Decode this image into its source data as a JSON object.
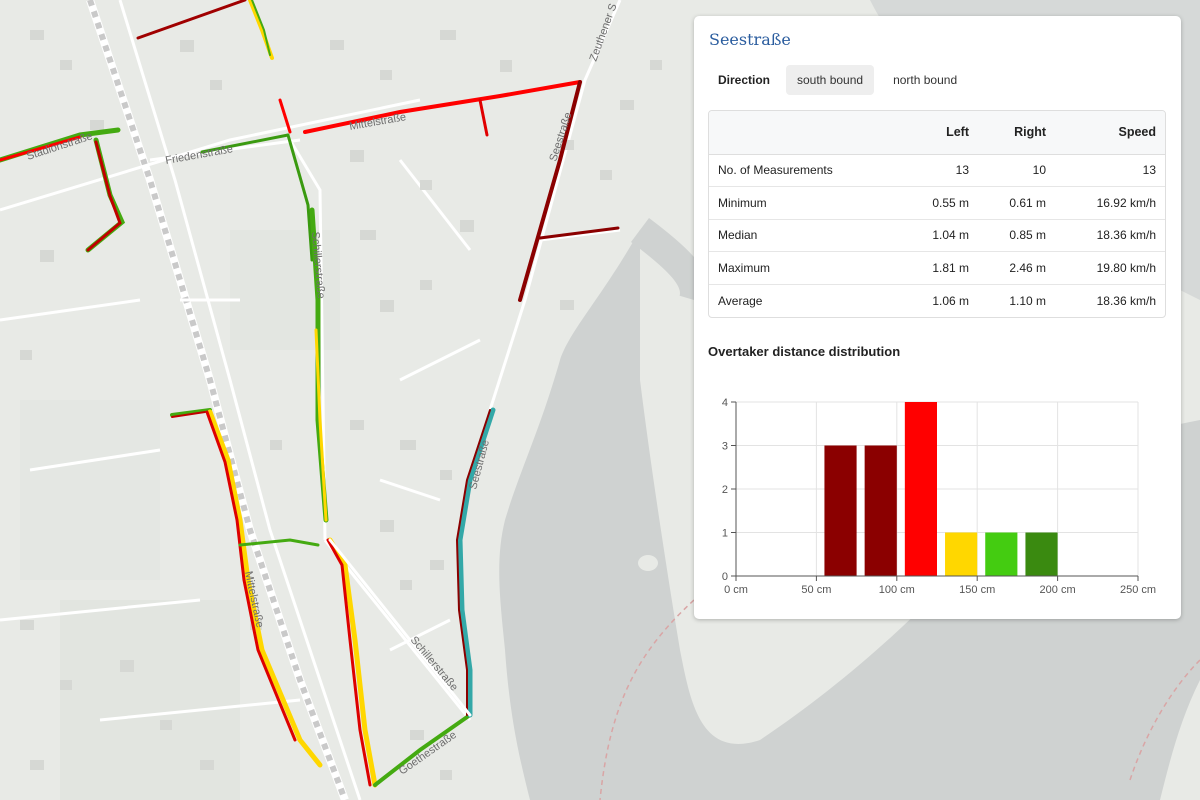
{
  "map": {
    "street_labels": [
      "Stadionstraße",
      "Friedenstraße",
      "Mittelstraße",
      "Seestraße",
      "Zeuthener S",
      "Schillerstraße",
      "Schillerstraße",
      "Goethestraße",
      "Seestraße",
      "Mittelstraße"
    ]
  },
  "panel": {
    "title": "Seestraße",
    "direction_label": "Direction",
    "buttons": [
      {
        "label": "south bound",
        "active": true
      },
      {
        "label": "north bound",
        "active": false
      }
    ]
  },
  "stats": {
    "headers": [
      "",
      "Left",
      "Right",
      "Speed"
    ],
    "rows": [
      {
        "name": "No. of Measurements",
        "left": "13",
        "right": "10",
        "speed": "13"
      },
      {
        "name": "Minimum",
        "left": "0.55 m",
        "right": "0.61 m",
        "speed": "16.92 km/h"
      },
      {
        "name": "Median",
        "left": "1.04 m",
        "right": "0.85 m",
        "speed": "18.36 km/h"
      },
      {
        "name": "Maximum",
        "left": "1.81 m",
        "right": "2.46 m",
        "speed": "19.80 km/h"
      },
      {
        "name": "Average",
        "left": "1.06 m",
        "right": "1.10 m",
        "speed": "18.36 km/h"
      }
    ]
  },
  "chart_title": "Overtaker distance distribution",
  "chart_data": {
    "type": "bar",
    "title": "Overtaker distance distribution",
    "xlabel": "",
    "ylabel": "",
    "x_tick_labels": [
      "0 cm",
      "50 cm",
      "100 cm",
      "150 cm",
      "200 cm",
      "250 cm"
    ],
    "x_ticks": [
      0,
      50,
      100,
      150,
      200,
      250
    ],
    "xlim": [
      0,
      250
    ],
    "ylim": [
      0,
      4
    ],
    "y_ticks": [
      0,
      1,
      2,
      3,
      4
    ],
    "grid": true,
    "bars": [
      {
        "center": 65,
        "value": 3,
        "color": "#8b0000"
      },
      {
        "center": 90,
        "value": 3,
        "color": "#8b0000"
      },
      {
        "center": 115,
        "value": 4,
        "color": "#ff0000"
      },
      {
        "center": 140,
        "value": 1,
        "color": "#ffd700"
      },
      {
        "center": 165,
        "value": 1,
        "color": "#44cc11"
      },
      {
        "center": 190,
        "value": 1,
        "color": "#3a8a10"
      }
    ]
  }
}
